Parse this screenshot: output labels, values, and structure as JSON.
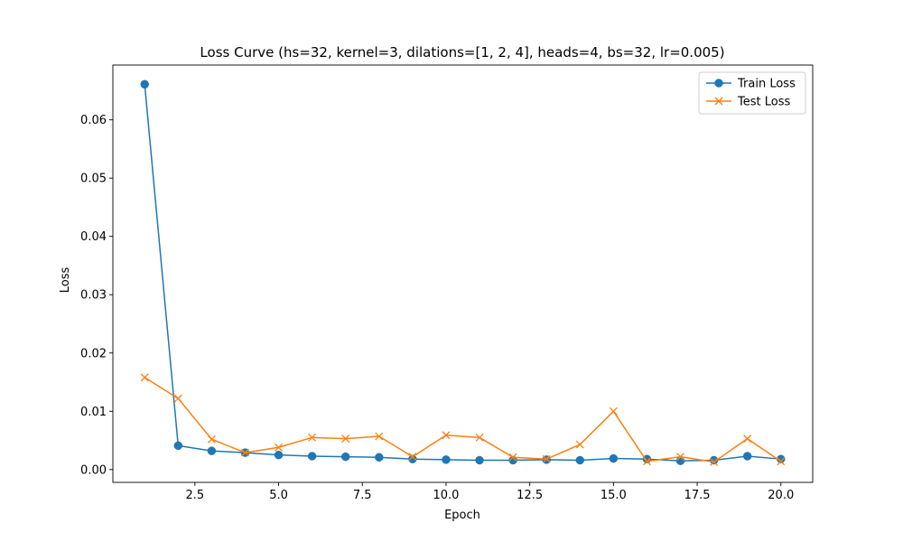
{
  "chart_data": {
    "type": "line",
    "title": "Loss Curve (hs=32, kernel=3, dilations=[1, 2, 4], heads=4, bs=32, lr=0.005)",
    "xlabel": "Epoch",
    "ylabel": "Loss",
    "xlim": [
      0.05,
      20.95
    ],
    "ylim": [
      -0.0022,
      0.0694
    ],
    "xticks": [
      2.5,
      5.0,
      7.5,
      10.0,
      12.5,
      15.0,
      17.5,
      20.0
    ],
    "xtick_labels": [
      "2.5",
      "5.0",
      "7.5",
      "10.0",
      "12.5",
      "15.0",
      "17.5",
      "20.0"
    ],
    "yticks": [
      0.0,
      0.01,
      0.02,
      0.03,
      0.04,
      0.05,
      0.06
    ],
    "ytick_labels": [
      "0.00",
      "0.01",
      "0.02",
      "0.03",
      "0.04",
      "0.05",
      "0.06"
    ],
    "grid": false,
    "legend_position": "top-right",
    "x": [
      1,
      2,
      3,
      4,
      5,
      6,
      7,
      8,
      9,
      10,
      11,
      12,
      13,
      14,
      15,
      16,
      17,
      18,
      19,
      20
    ],
    "series": [
      {
        "name": "Train Loss",
        "color": "#1f77b4",
        "marker": "circle",
        "values": [
          0.0661,
          0.0041,
          0.0032,
          0.0029,
          0.0025,
          0.0023,
          0.0022,
          0.0021,
          0.0018,
          0.0017,
          0.0016,
          0.0016,
          0.0017,
          0.0016,
          0.0019,
          0.0018,
          0.0015,
          0.0016,
          0.0023,
          0.0018
        ]
      },
      {
        "name": "Test Loss",
        "color": "#ff7f0e",
        "marker": "x",
        "values": [
          0.0158,
          0.0122,
          0.0052,
          0.0029,
          0.0038,
          0.0055,
          0.0053,
          0.0057,
          0.0022,
          0.0059,
          0.0055,
          0.0021,
          0.0018,
          0.0043,
          0.01,
          0.0014,
          0.0022,
          0.0013,
          0.0053,
          0.0014
        ]
      }
    ]
  }
}
